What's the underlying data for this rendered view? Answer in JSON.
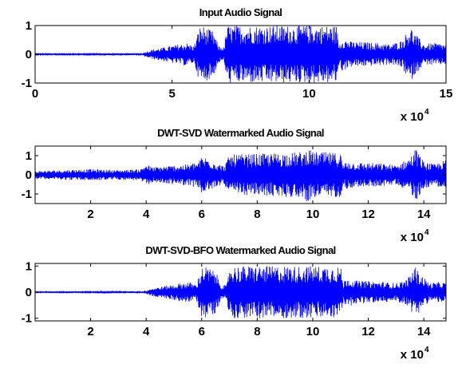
{
  "colors": {
    "signal": "#0000ff",
    "axis": "#000000",
    "background": "#ffffff"
  },
  "chart_data": [
    {
      "type": "line",
      "title": "Input Audio Signal",
      "xlim": [
        0,
        150000
      ],
      "ylim": [
        -1,
        1
      ],
      "xticks": [
        0,
        50000,
        100000,
        150000
      ],
      "xtick_labels": [
        "0",
        "5",
        "10",
        "15"
      ],
      "yticks": [
        -1,
        0,
        1
      ],
      "ytick_labels": [
        "-1",
        "0",
        "1"
      ],
      "x_multiplier": {
        "base": "x 10",
        "exponent": "4"
      },
      "grid": false,
      "envelope_x": [
        0,
        15000,
        30000,
        39000,
        42000,
        50000,
        55000,
        58000,
        60000,
        61000,
        65000,
        67000,
        69000,
        70000,
        90000,
        110000,
        111000,
        112000,
        115000,
        125000,
        130000,
        134000,
        137000,
        138000,
        142000,
        146000,
        150000
      ],
      "envelope_amp": [
        0.02,
        0.02,
        0.03,
        0.04,
        0.15,
        0.3,
        0.4,
        0.3,
        0.95,
        1.0,
        0.8,
        0.3,
        0.25,
        1.0,
        1.0,
        1.0,
        0.35,
        0.6,
        0.45,
        0.4,
        0.35,
        0.5,
        1.0,
        0.8,
        0.35,
        0.4,
        0.35
      ]
    },
    {
      "type": "line",
      "title": "DWT-SVD Watermarked Audio Signal",
      "xlim": [
        0,
        148000
      ],
      "ylim": [
        -1.5,
        1.5
      ],
      "xticks": [
        20000,
        40000,
        60000,
        80000,
        100000,
        120000,
        140000
      ],
      "xtick_labels": [
        "2",
        "4",
        "6",
        "8",
        "10",
        "12",
        "14"
      ],
      "yticks": [
        -1,
        0,
        1
      ],
      "ytick_labels": [
        "-1",
        "0",
        "1"
      ],
      "x_multiplier": {
        "base": "x 10",
        "exponent": "4"
      },
      "grid": false,
      "envelope_x": [
        0,
        10000,
        20000,
        30000,
        38000,
        40000,
        42000,
        50000,
        55000,
        59000,
        60000,
        62000,
        66000,
        68000,
        70000,
        80000,
        90000,
        97000,
        98000,
        99000,
        100000,
        110000,
        111000,
        112000,
        115000,
        125000,
        130000,
        134000,
        136000,
        137000,
        140000,
        144000,
        148000
      ],
      "envelope_amp": [
        0.2,
        0.25,
        0.3,
        0.25,
        0.3,
        0.6,
        0.4,
        0.5,
        0.55,
        0.7,
        1.0,
        0.9,
        0.6,
        0.45,
        1.05,
        1.1,
        1.15,
        1.2,
        1.45,
        1.3,
        1.2,
        1.15,
        0.5,
        0.75,
        0.65,
        0.6,
        0.5,
        0.8,
        1.1,
        1.4,
        0.7,
        0.55,
        0.8
      ]
    },
    {
      "type": "line",
      "title": "DWT-SVD-BFO Watermarked Audio Signal",
      "xlim": [
        0,
        148000
      ],
      "ylim": [
        -1.1,
        1.1
      ],
      "xticks": [
        20000,
        40000,
        60000,
        80000,
        100000,
        120000,
        140000
      ],
      "xtick_labels": [
        "2",
        "4",
        "6",
        "8",
        "10",
        "12",
        "14"
      ],
      "yticks": [
        -1,
        0,
        1
      ],
      "ytick_labels": [
        "-1",
        "0",
        "1"
      ],
      "x_multiplier": {
        "base": "x 10",
        "exponent": "4"
      },
      "grid": false,
      "envelope_x": [
        0,
        15000,
        30000,
        39000,
        42000,
        50000,
        55000,
        58000,
        60000,
        61000,
        65000,
        67000,
        69000,
        70000,
        90000,
        110000,
        111000,
        112000,
        115000,
        125000,
        130000,
        134000,
        137000,
        138000,
        142000,
        146000,
        148000
      ],
      "envelope_amp": [
        0.02,
        0.02,
        0.03,
        0.04,
        0.15,
        0.3,
        0.4,
        0.3,
        0.95,
        1.0,
        0.8,
        0.3,
        0.25,
        1.0,
        1.0,
        1.0,
        0.35,
        0.6,
        0.45,
        0.4,
        0.35,
        0.5,
        1.0,
        0.8,
        0.35,
        0.4,
        0.35
      ]
    }
  ]
}
